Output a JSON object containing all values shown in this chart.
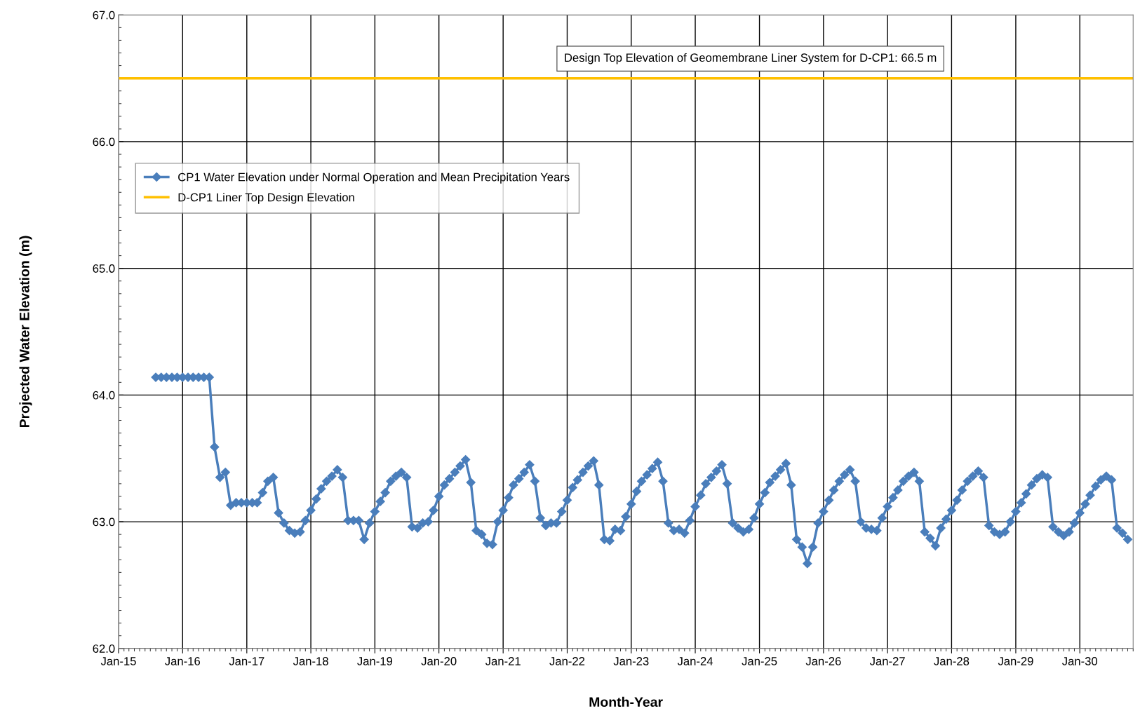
{
  "chart_data": {
    "type": "line",
    "xlabel": "Month-Year",
    "ylabel": "Projected Water Elevation (m)",
    "x": [
      "2015-08",
      "2015-09",
      "2015-10",
      "2015-11",
      "2015-12",
      "2016-01",
      "2016-02",
      "2016-03",
      "2016-04",
      "2016-05",
      "2016-06",
      "2016-07",
      "2016-08",
      "2016-09",
      "2016-10",
      "2016-11",
      "2016-12",
      "2017-01",
      "2017-02",
      "2017-03",
      "2017-04",
      "2017-05",
      "2017-06",
      "2017-07",
      "2017-08",
      "2017-09",
      "2017-10",
      "2017-11",
      "2017-12",
      "2018-01",
      "2018-02",
      "2018-03",
      "2018-04",
      "2018-05",
      "2018-06",
      "2018-07",
      "2018-08",
      "2018-09",
      "2018-10",
      "2018-11",
      "2018-12",
      "2019-01",
      "2019-02",
      "2019-03",
      "2019-04",
      "2019-05",
      "2019-06",
      "2019-07",
      "2019-08",
      "2019-09",
      "2019-10",
      "2019-11",
      "2019-12",
      "2020-01",
      "2020-02",
      "2020-03",
      "2020-04",
      "2020-05",
      "2020-06",
      "2020-07",
      "2020-08",
      "2020-09",
      "2020-10",
      "2020-11",
      "2020-12",
      "2021-01",
      "2021-02",
      "2021-03",
      "2021-04",
      "2021-05",
      "2021-06",
      "2021-07",
      "2021-08",
      "2021-09",
      "2021-10",
      "2021-11",
      "2021-12",
      "2022-01",
      "2022-02",
      "2022-03",
      "2022-04",
      "2022-05",
      "2022-06",
      "2022-07",
      "2022-08",
      "2022-09",
      "2022-10",
      "2022-11",
      "2022-12",
      "2023-01",
      "2023-02",
      "2023-03",
      "2023-04",
      "2023-05",
      "2023-06",
      "2023-07",
      "2023-08",
      "2023-09",
      "2023-10",
      "2023-11",
      "2023-12",
      "2024-01",
      "2024-02",
      "2024-03",
      "2024-04",
      "2024-05",
      "2024-06",
      "2024-07",
      "2024-08",
      "2024-09",
      "2024-10",
      "2024-11",
      "2024-12",
      "2025-01",
      "2025-02",
      "2025-03",
      "2025-04",
      "2025-05",
      "2025-06",
      "2025-07",
      "2025-08",
      "2025-09",
      "2025-10",
      "2025-11",
      "2025-12",
      "2026-01",
      "2026-02",
      "2026-03",
      "2026-04",
      "2026-05",
      "2026-06",
      "2026-07",
      "2026-08",
      "2026-09",
      "2026-10",
      "2026-11",
      "2026-12",
      "2027-01",
      "2027-02",
      "2027-03",
      "2027-04",
      "2027-05",
      "2027-06",
      "2027-07",
      "2027-08",
      "2027-09",
      "2027-10",
      "2027-11",
      "2027-12",
      "2028-01",
      "2028-02",
      "2028-03",
      "2028-04",
      "2028-05",
      "2028-06",
      "2028-07",
      "2028-08",
      "2028-09",
      "2028-10",
      "2028-11",
      "2028-12",
      "2029-01",
      "2029-02",
      "2029-03",
      "2029-04",
      "2029-05",
      "2029-06",
      "2029-07",
      "2029-08",
      "2029-09",
      "2029-10",
      "2029-11",
      "2029-12",
      "2030-01",
      "2030-02",
      "2030-03",
      "2030-04",
      "2030-05",
      "2030-06",
      "2030-07",
      "2030-08",
      "2030-09",
      "2030-10"
    ],
    "series": [
      {
        "name": "CP1 Water Elevation under Normal Operation and Mean Precipitation Years",
        "color": "#4a7ebb",
        "values": [
          64.14,
          64.14,
          64.14,
          64.14,
          64.14,
          64.14,
          64.14,
          64.14,
          64.14,
          64.14,
          64.14,
          63.59,
          63.35,
          63.39,
          63.13,
          63.15,
          63.15,
          63.15,
          63.15,
          63.15,
          63.23,
          63.32,
          63.35,
          63.07,
          62.99,
          62.93,
          62.91,
          62.92,
          63.01,
          63.09,
          63.18,
          63.26,
          63.32,
          63.36,
          63.41,
          63.35,
          63.01,
          63.01,
          63.01,
          62.86,
          62.99,
          63.08,
          63.16,
          63.23,
          63.32,
          63.36,
          63.39,
          63.35,
          62.96,
          62.95,
          62.99,
          63.0,
          63.09,
          63.2,
          63.29,
          63.34,
          63.39,
          63.44,
          63.49,
          63.31,
          62.93,
          62.9,
          62.83,
          62.82,
          63.0,
          63.09,
          63.19,
          63.29,
          63.34,
          63.39,
          63.45,
          63.32,
          63.03,
          62.97,
          62.99,
          62.99,
          63.08,
          63.17,
          63.27,
          63.33,
          63.39,
          63.44,
          63.48,
          63.29,
          62.86,
          62.85,
          62.94,
          62.93,
          63.04,
          63.14,
          63.24,
          63.32,
          63.37,
          63.42,
          63.47,
          63.32,
          62.99,
          62.93,
          62.94,
          62.91,
          63.01,
          63.12,
          63.21,
          63.3,
          63.35,
          63.4,
          63.45,
          63.3,
          62.99,
          62.95,
          62.92,
          62.94,
          63.03,
          63.14,
          63.23,
          63.31,
          63.36,
          63.41,
          63.46,
          63.29,
          62.86,
          62.8,
          62.67,
          62.8,
          62.99,
          63.08,
          63.17,
          63.25,
          63.32,
          63.37,
          63.41,
          63.32,
          63.0,
          62.95,
          62.94,
          62.93,
          63.03,
          63.12,
          63.19,
          63.25,
          63.32,
          63.36,
          63.39,
          63.32,
          62.92,
          62.87,
          62.81,
          62.95,
          63.02,
          63.09,
          63.17,
          63.25,
          63.32,
          63.36,
          63.4,
          63.35,
          62.97,
          62.92,
          62.9,
          62.92,
          63.0,
          63.08,
          63.15,
          63.22,
          63.29,
          63.34,
          63.37,
          63.35,
          62.96,
          62.92,
          62.89,
          62.92,
          62.99,
          63.07,
          63.14,
          63.21,
          63.28,
          63.33,
          63.36,
          63.33,
          62.95,
          62.91,
          62.86
        ]
      }
    ],
    "ref_lines": [
      {
        "axis": "y",
        "value": 66.5,
        "label": "D-CP1 Liner Top Design Elevation",
        "color": "#ffc000"
      }
    ],
    "annotations": [
      "Design Top Elevation of Geomembrane Liner System for D-CP1: 66.5 m"
    ],
    "xlim": [
      "2015-01",
      "2030-11"
    ],
    "xticks": [
      {
        "value": "2015-01",
        "label": "Jan-15"
      },
      {
        "value": "2016-01",
        "label": "Jan-16"
      },
      {
        "value": "2017-01",
        "label": "Jan-17"
      },
      {
        "value": "2018-01",
        "label": "Jan-18"
      },
      {
        "value": "2019-01",
        "label": "Jan-19"
      },
      {
        "value": "2020-01",
        "label": "Jan-20"
      },
      {
        "value": "2021-01",
        "label": "Jan-21"
      },
      {
        "value": "2022-01",
        "label": "Jan-22"
      },
      {
        "value": "2023-01",
        "label": "Jan-23"
      },
      {
        "value": "2024-01",
        "label": "Jan-24"
      },
      {
        "value": "2025-01",
        "label": "Jan-25"
      },
      {
        "value": "2026-01",
        "label": "Jan-26"
      },
      {
        "value": "2027-01",
        "label": "Jan-27"
      },
      {
        "value": "2028-01",
        "label": "Jan-28"
      },
      {
        "value": "2029-01",
        "label": "Jan-29"
      },
      {
        "value": "2030-01",
        "label": "Jan-30"
      }
    ],
    "ylim": [
      62.0,
      67.0
    ],
    "yticks": [
      {
        "value": 62,
        "label": "62.0"
      },
      {
        "value": 63,
        "label": "63.0"
      },
      {
        "value": 64,
        "label": "64.0"
      },
      {
        "value": 65,
        "label": "65.0"
      },
      {
        "value": 66,
        "label": "66.0"
      },
      {
        "value": 67,
        "label": "67.0"
      }
    ],
    "grid": true,
    "legend": "top left",
    "marker": "diamond",
    "line_style": "solid"
  }
}
